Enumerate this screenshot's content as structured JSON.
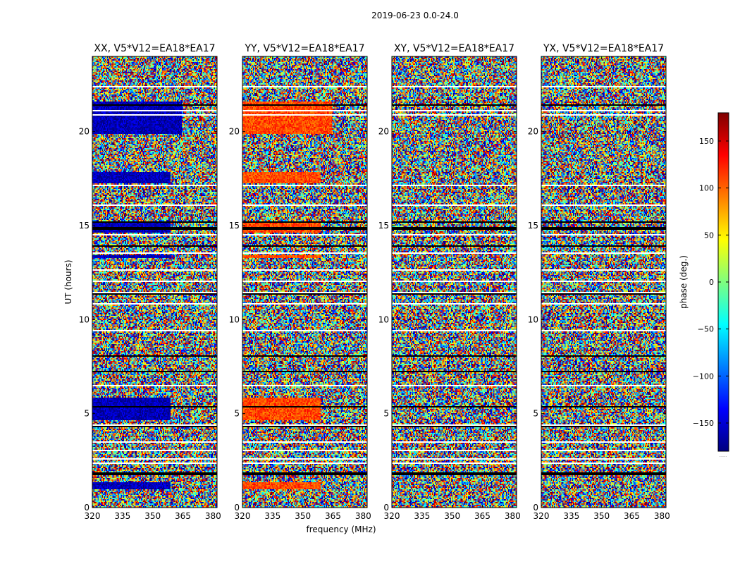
{
  "suptitle": "2019-06-23 0.0-24.0",
  "xlabel": "frequency (MHz)",
  "ylabel": "UT (hours)",
  "colorbar_label": "phase (deg.)",
  "colorbar_footer": "......",
  "chart_data": [
    {
      "type": "heatmap",
      "title": "XX, V5*V12=EA18*EA17",
      "xlim": [
        320,
        382
      ],
      "ylim": [
        0,
        24
      ],
      "x_ticks": [
        320,
        335,
        350,
        365,
        380
      ],
      "y_ticks": [
        0,
        5,
        10,
        15,
        20
      ],
      "mode": "strong_xx",
      "coherent_bias_deg": -160
    },
    {
      "type": "heatmap",
      "title": "YY, V5*V12=EA18*EA17",
      "xlim": [
        320,
        382
      ],
      "ylim": [
        0,
        24
      ],
      "x_ticks": [
        320,
        335,
        350,
        365,
        380
      ],
      "y_ticks": [
        0,
        5,
        10,
        15,
        20
      ],
      "mode": "strong_yy",
      "coherent_bias_deg": 110
    },
    {
      "type": "heatmap",
      "title": "XY, V5*V12=EA18*EA17",
      "xlim": [
        320,
        382
      ],
      "ylim": [
        0,
        24
      ],
      "x_ticks": [
        320,
        335,
        350,
        365,
        380
      ],
      "y_ticks": [
        0,
        5,
        10,
        15,
        20
      ],
      "mode": "noise",
      "coherent_bias_deg": 0
    },
    {
      "type": "heatmap",
      "title": "YX, V5*V12=EA18*EA17",
      "xlim": [
        320,
        382
      ],
      "ylim": [
        0,
        24
      ],
      "x_ticks": [
        320,
        335,
        350,
        365,
        380
      ],
      "y_ticks": [
        0,
        5,
        10,
        15,
        20
      ],
      "mode": "noise",
      "coherent_bias_deg": 0
    }
  ],
  "colorbar": {
    "range": [
      -180,
      180
    ],
    "ticks": [
      -150,
      -100,
      -50,
      0,
      50,
      100,
      150
    ],
    "colormap": "jet"
  }
}
